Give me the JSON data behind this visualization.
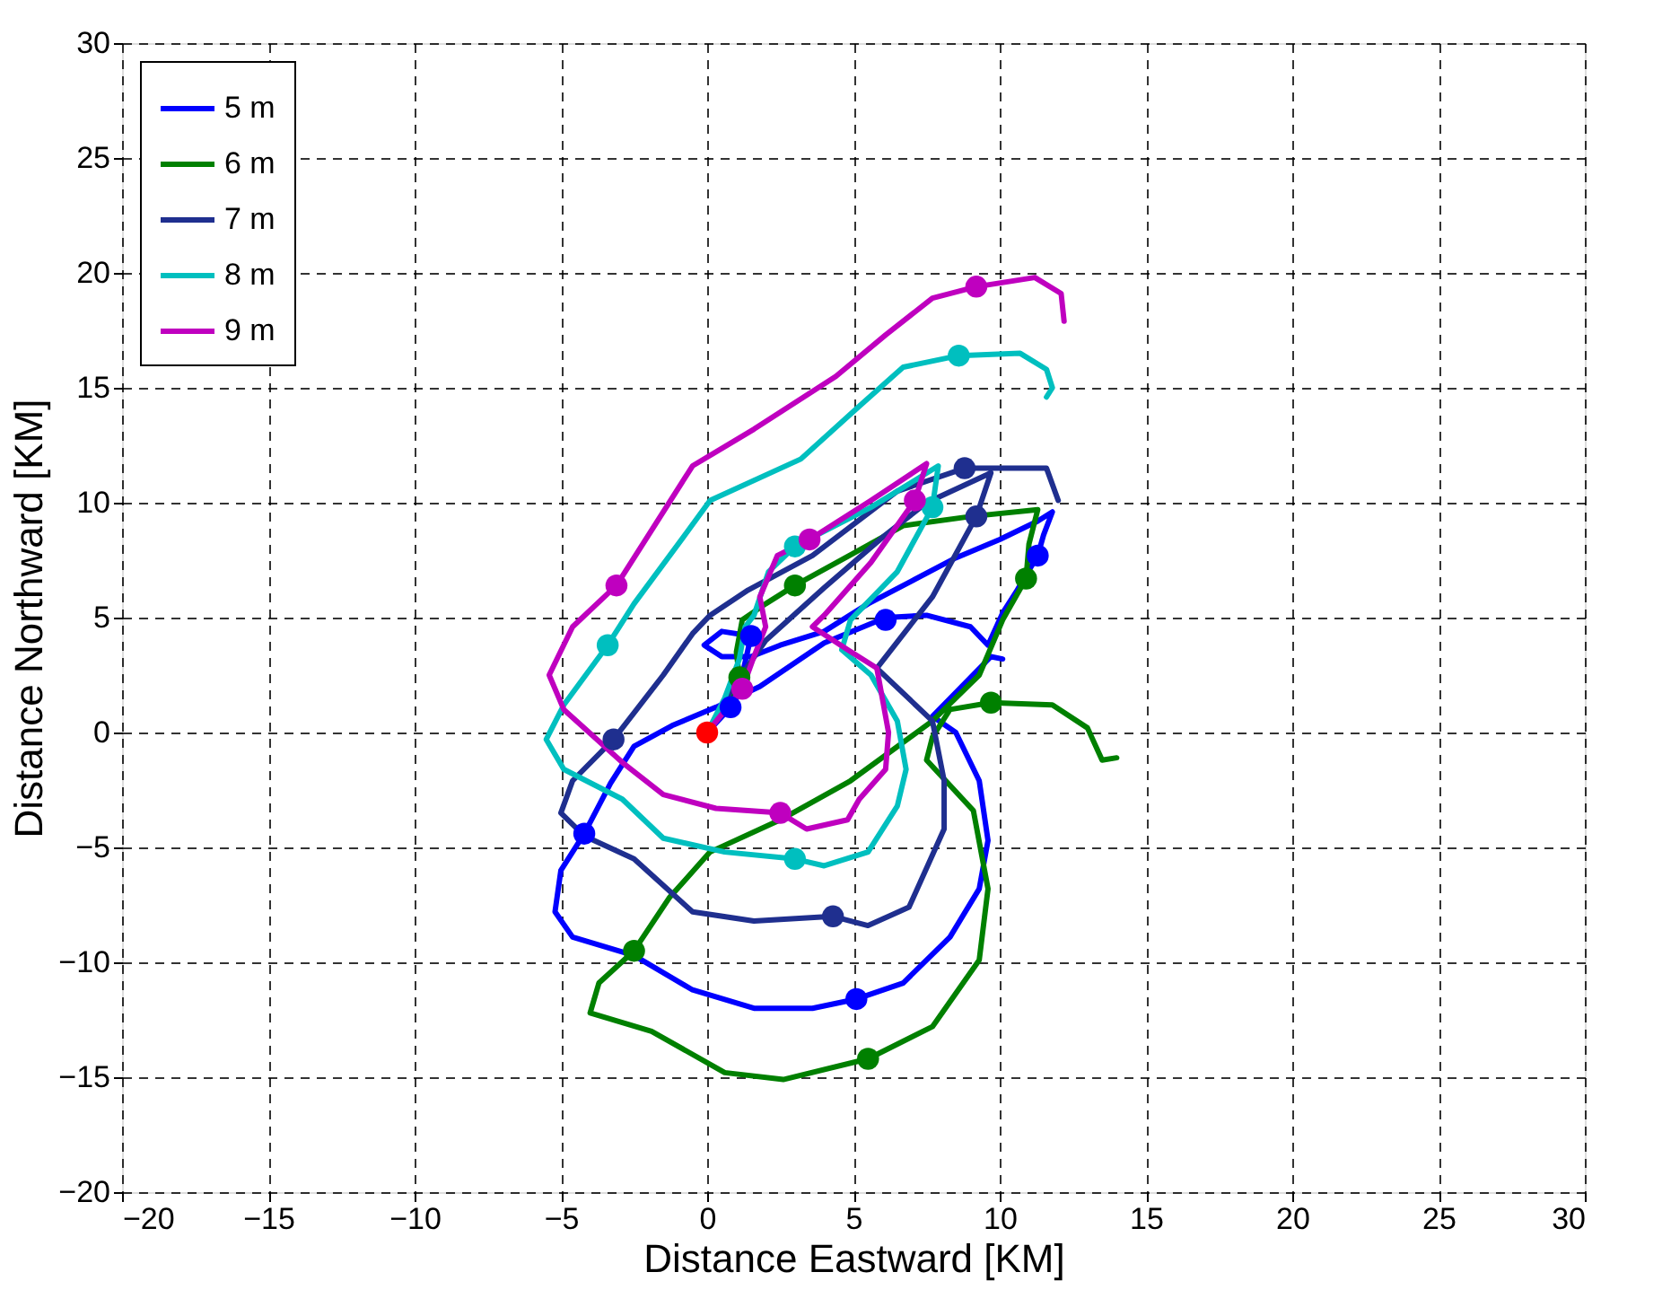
{
  "chart_data": {
    "type": "line",
    "xlabel": "Distance Eastward [KM]",
    "ylabel": "Distance Northward [KM]",
    "xlim": [
      -20,
      30
    ],
    "ylim": [
      -20,
      30
    ],
    "xticks": [
      -20,
      -15,
      -10,
      -5,
      0,
      5,
      10,
      15,
      20,
      25,
      30
    ],
    "yticks": [
      -20,
      -15,
      -10,
      -5,
      0,
      5,
      10,
      15,
      20,
      25,
      30
    ],
    "grid": true,
    "legend": "top left",
    "line_style": "solid",
    "series": [
      {
        "name": "5 m",
        "color": "#0000ff",
        "marker": "none",
        "x": [
          0,
          0.8,
          1.2,
          1.5,
          0.5,
          -0.1,
          0.5,
          1.5,
          2.5,
          4,
          5.5,
          7,
          8.5,
          10,
          11.3,
          11.8,
          11.5,
          11.3,
          10.6,
          10.1,
          9.6,
          9.0,
          7.5,
          6.1,
          4.0,
          1.8,
          0.3,
          -1.2,
          -2.5,
          -3.3,
          -4.2,
          -5.0,
          -5.2,
          -4.6,
          -2.5,
          -0.5,
          1.6,
          3.6,
          5.1,
          6.7,
          8.3,
          9.3,
          9.6,
          9.3,
          8.5,
          7.7,
          8.7,
          9.7,
          10.1
        ],
        "values": [
          0,
          1.1,
          2.5,
          4.2,
          4.4,
          3.8,
          3.3,
          3.3,
          3.8,
          4.4,
          5.6,
          6.6,
          7.6,
          8.4,
          9.2,
          9.6,
          8.6,
          7.7,
          6.2,
          5.2,
          3.8,
          4.6,
          5.1,
          5.0,
          3.9,
          2.0,
          1.1,
          0.3,
          -0.6,
          -2.2,
          -4.4,
          -6.0,
          -7.8,
          -8.9,
          -9.7,
          -11.2,
          -12.0,
          -12.0,
          -11.6,
          -10.9,
          -8.9,
          -6.8,
          -4.7,
          -2.1,
          0,
          0.7,
          2.0,
          3.3,
          3.2
        ]
      },
      {
        "name": "6 m",
        "color": "#008000",
        "marker": "none",
        "x": [
          0,
          0.6,
          1.1,
          1.0,
          1.2,
          2.0,
          3.0,
          5,
          6.7,
          9,
          11.3,
          11.0,
          10.9,
          10.1,
          9.3,
          7.7,
          4.9,
          2.5,
          0.1,
          -1.3,
          -2.5,
          -3.7,
          -4.0,
          -1.9,
          0.6,
          2.6,
          5.5,
          7.7,
          9.3,
          9.6,
          9.1,
          7.5,
          7.7,
          8.3,
          9.7,
          11.8,
          13.0,
          13.5,
          14.0
        ],
        "values": [
          0,
          1.2,
          2.4,
          3.5,
          4.9,
          5.6,
          6.4,
          7.8,
          9.0,
          9.4,
          9.7,
          8.2,
          6.7,
          4.9,
          2.5,
          0.5,
          -2.1,
          -3.8,
          -5.2,
          -7.2,
          -9.5,
          -10.9,
          -12.2,
          -13.0,
          -14.8,
          -15.1,
          -14.2,
          -12.8,
          -9.9,
          -6.8,
          -3.4,
          -1.2,
          -0.2,
          1.0,
          1.3,
          1.2,
          0.2,
          -1.2,
          -1.1
        ]
      },
      {
        "name": "7 m",
        "color": "#1f2f8f",
        "marker": "none",
        "x": [
          0,
          0.9,
          2,
          4,
          6,
          7.5,
          9.7,
          9.2,
          7.7,
          5.8,
          7.7,
          8.1,
          8.1,
          6.9,
          5.5,
          4.3,
          1.6,
          -0.5,
          -2.5,
          -4.2,
          -5.0,
          -4.6,
          -3.2,
          -1.5,
          -0.5,
          0.1,
          1.4,
          3.6,
          6.5,
          8.8,
          11.6,
          12.0
        ],
        "values": [
          0,
          2.0,
          4.0,
          6.3,
          8.5,
          10.0,
          11.3,
          9.4,
          5.9,
          2.8,
          0.5,
          -2.1,
          -4.2,
          -7.6,
          -8.4,
          -8.0,
          -8.2,
          -7.8,
          -5.5,
          -4.5,
          -3.5,
          -2.1,
          -0.3,
          2.5,
          4.3,
          5.1,
          6.2,
          7.7,
          10.5,
          11.5,
          11.5,
          10.1
        ]
      },
      {
        "name": "8 m",
        "color": "#00bfbf",
        "marker": "none",
        "x": [
          0,
          0.6,
          1.1,
          1.3,
          1.6,
          2.1,
          3.0,
          5.6,
          7.9,
          7.7,
          6.5,
          4.9,
          4.6,
          5.6,
          6.5,
          6.8,
          6.5,
          5.5,
          4.0,
          3.0,
          0.6,
          -1.5,
          -2.9,
          -4.9,
          -5.5,
          -4.9,
          -3.4,
          -2.5,
          -0.7,
          0.1,
          3.2,
          5.2,
          6.7,
          8.6,
          10.7,
          11.6,
          11.8,
          11.6
        ],
        "values": [
          0,
          1.5,
          3.2,
          4.6,
          5.1,
          7.0,
          8.1,
          9.8,
          11.6,
          9.8,
          7.0,
          4.9,
          3.6,
          2.5,
          0.5,
          -1.6,
          -3.2,
          -5.2,
          -5.8,
          -5.5,
          -5.2,
          -4.6,
          -2.9,
          -1.6,
          -0.3,
          1.2,
          3.8,
          5.6,
          8.7,
          10.1,
          11.9,
          14.2,
          15.9,
          16.4,
          16.5,
          15.8,
          15.0,
          14.6
        ]
      },
      {
        "name": "9 m",
        "color": "#bf00bf",
        "marker": "none",
        "x": [
          0,
          1.2,
          1.6,
          2.0,
          1.8,
          2.4,
          3.5,
          5.6,
          7.5,
          7.1,
          5.6,
          4.0,
          3.6,
          4.8,
          5.8,
          6.2,
          6.1,
          5.2,
          4.8,
          3.4,
          2.5,
          0.3,
          -1.5,
          -2.9,
          -4.9,
          -5.4,
          -4.6,
          -3.1,
          -0.5,
          1.6,
          4.4,
          6.1,
          7.7,
          9.2,
          11.2,
          12.1,
          12.2
        ],
        "values": [
          0,
          1.9,
          3.3,
          4.6,
          5.9,
          7.7,
          8.4,
          10.1,
          11.7,
          10.1,
          7.4,
          5.1,
          4.6,
          3.6,
          2.8,
          0,
          -1.6,
          -2.9,
          -3.8,
          -4.2,
          -3.5,
          -3.3,
          -2.7,
          -1.3,
          1.0,
          2.5,
          4.6,
          6.4,
          11.6,
          13.2,
          15.5,
          17.3,
          18.9,
          19.4,
          19.8,
          19.1,
          17.9
        ]
      },
      {
        "color": "#0000ff",
        "type": "scatter",
        "marker": "circle",
        "x": [
          0.8,
          1.5,
          6.1,
          11.3,
          -4.2,
          5.1
        ],
        "values": [
          1.1,
          4.2,
          4.9,
          7.7,
          -4.4,
          -11.6
        ]
      },
      {
        "color": "#008000",
        "type": "scatter",
        "marker": "circle",
        "x": [
          1.1,
          3.0,
          10.9,
          9.7,
          -2.5,
          5.5
        ],
        "values": [
          2.4,
          6.4,
          6.7,
          1.3,
          -9.5,
          -14.2
        ]
      },
      {
        "color": "#1f2f8f",
        "type": "scatter",
        "marker": "circle",
        "x": [
          8.8,
          9.2,
          -3.2,
          4.3
        ],
        "values": [
          11.5,
          9.4,
          -0.3,
          -8.0
        ]
      },
      {
        "color": "#00bfbf",
        "type": "scatter",
        "marker": "circle",
        "x": [
          8.6,
          7.7,
          3.0,
          -3.4,
          3.0
        ],
        "values": [
          16.4,
          9.8,
          8.1,
          3.8,
          -5.5
        ]
      },
      {
        "color": "#bf00bf",
        "type": "scatter",
        "marker": "circle",
        "x": [
          9.2,
          7.1,
          3.5,
          -3.1,
          1.2,
          2.5
        ],
        "values": [
          19.4,
          10.1,
          8.4,
          6.4,
          1.9,
          -3.5
        ]
      },
      {
        "color": "#ff0000",
        "type": "scatter",
        "marker": "circle",
        "x": [
          0
        ],
        "values": [
          0
        ]
      }
    ]
  }
}
